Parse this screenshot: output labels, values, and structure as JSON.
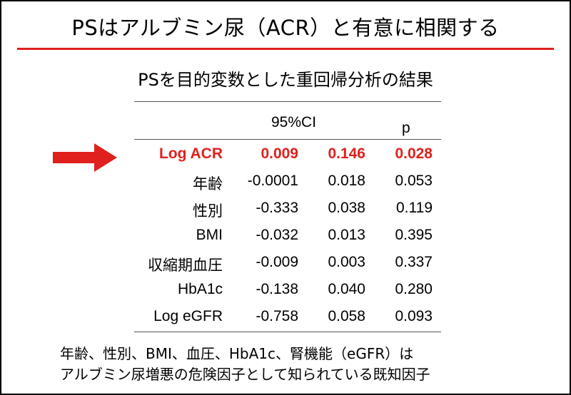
{
  "title": "PSはアルブミン尿（ACR）と有意に相関する",
  "subtitle": "PSを目的変数とした重回帰分析の結果",
  "table": {
    "header_ci": "95%CI",
    "header_p": "p",
    "rows": [
      {
        "label": "Log ACR",
        "coef": "0.009",
        "ci": "0.146",
        "p": "0.028",
        "highlighted": true
      },
      {
        "label": "年齢",
        "coef": "-0.0001",
        "ci": "0.018",
        "p": "0.053"
      },
      {
        "label": "性別",
        "coef": "-0.333",
        "ci": "0.038",
        "p": "0.119"
      },
      {
        "label": "BMI",
        "coef": "-0.032",
        "ci": "0.013",
        "p": "0.395"
      },
      {
        "label": "収縮期血圧",
        "coef": "-0.009",
        "ci": "0.003",
        "p": "0.337"
      },
      {
        "label": "HbA1c",
        "coef": "-0.138",
        "ci": "0.040",
        "p": "0.280"
      },
      {
        "label": "Log eGFR",
        "coef": "-0.758",
        "ci": "0.058",
        "p": "0.093"
      }
    ]
  },
  "footnote": {
    "line1": "年齢、性別、BMI、血圧、HbA1c、腎機能（eGFR）は",
    "line2": "アルブミン尿増悪の危険因子として知られている既知因子"
  },
  "colors": {
    "accent": "#e0201c",
    "text": "#000000",
    "background": "#ffffff"
  },
  "icons": {
    "pointer": "right-arrow-icon"
  }
}
